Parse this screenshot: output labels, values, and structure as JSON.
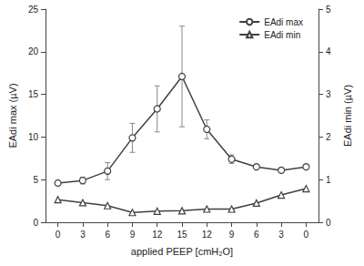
{
  "chart_data": {
    "type": "line",
    "x_label": "applied PEEP [cmH₂O]",
    "y_label": "EAdi max (µV)",
    "y2_label": "EAdi min (µV)",
    "categories": [
      "0",
      "3",
      "6",
      "9",
      "12",
      "15",
      "12",
      "9",
      "6",
      "3",
      "0"
    ],
    "series": [
      {
        "name": "EAdi max",
        "color": "#404040",
        "marker": "circle",
        "line_style": "solid",
        "values": [
          4.6,
          4.9,
          6.0,
          9.9,
          13.3,
          17.1,
          10.9,
          7.4,
          6.5,
          6.1,
          6.5
        ],
        "error": [
          0.2,
          0.4,
          1.0,
          1.7,
          2.7,
          5.9,
          1.1,
          0.5,
          0.2,
          0.2,
          0.2
        ]
      },
      {
        "name": "EAdi min",
        "color": "#404040",
        "marker": "triangle",
        "line_style": "solid",
        "axis": "y2",
        "values": [
          0.53,
          0.46,
          0.39,
          0.23,
          0.26,
          0.27,
          0.31,
          0.31,
          0.45,
          0.64,
          0.79
        ]
      }
    ],
    "ylim": [
      0,
      25
    ],
    "yticks": [
      0,
      5,
      10,
      15,
      20,
      25
    ],
    "y2lim": [
      0,
      5
    ],
    "y2ticks": [
      0,
      1,
      2,
      3,
      4,
      5
    ],
    "grid": false,
    "legend": "upper right"
  }
}
